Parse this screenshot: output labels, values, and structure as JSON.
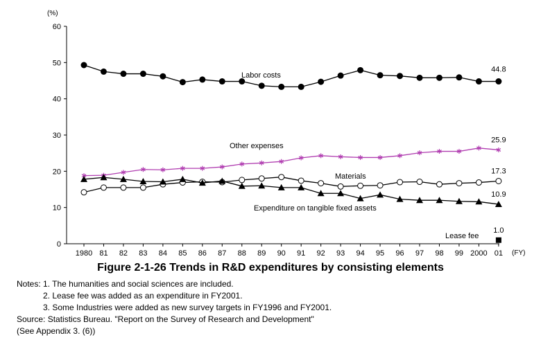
{
  "chart_data": {
    "type": "line",
    "title": "Figure 2-1-26  Trends in R&D expenditures by consisting elements",
    "ylabel": "(%)",
    "xlabel": "(FY)",
    "ylim": [
      0,
      60
    ],
    "yticks": [
      "0",
      "10",
      "20",
      "30",
      "40",
      "50",
      "60"
    ],
    "categories": [
      "1980",
      "81",
      "82",
      "83",
      "84",
      "85",
      "86",
      "87",
      "88",
      "89",
      "90",
      "91",
      "92",
      "93",
      "94",
      "95",
      "96",
      "97",
      "98",
      "99",
      "2000",
      "01"
    ],
    "grid": false,
    "legend": "inline labels",
    "series": [
      {
        "name": "Labor costs",
        "marker": "filled-circle",
        "color": "#000000",
        "values": [
          49.3,
          47.5,
          46.9,
          46.9,
          46.2,
          44.6,
          45.3,
          44.8,
          44.8,
          43.6,
          43.3,
          43.3,
          44.7,
          46.4,
          47.9,
          46.5,
          46.3,
          45.8,
          45.8,
          45.9,
          44.8,
          44.8
        ],
        "end_label": "44.8"
      },
      {
        "name": "Other expenses",
        "marker": "star",
        "color": "#b03cb0",
        "values": [
          18.8,
          18.9,
          19.7,
          20.5,
          20.4,
          20.8,
          20.8,
          21.2,
          22.0,
          22.3,
          22.7,
          23.7,
          24.3,
          24.0,
          23.8,
          23.8,
          24.3,
          25.1,
          25.5,
          25.5,
          26.4,
          25.9
        ],
        "end_label": "25.9"
      },
      {
        "name": "Materials",
        "marker": "open-circle",
        "color": "#000000",
        "values": [
          14.2,
          15.5,
          15.5,
          15.5,
          16.4,
          16.9,
          17.1,
          17.0,
          17.6,
          18.0,
          18.4,
          17.4,
          16.7,
          15.8,
          16.0,
          16.1,
          17.0,
          17.1,
          16.4,
          16.7,
          16.9,
          17.3
        ],
        "end_label": "17.3"
      },
      {
        "name": "Expenditure on tangible fixed assets",
        "marker": "filled-triangle",
        "color": "#000000",
        "values": [
          17.8,
          18.3,
          17.8,
          17.2,
          17.1,
          17.8,
          16.8,
          17.3,
          15.9,
          16.0,
          15.5,
          15.5,
          13.9,
          13.9,
          12.5,
          13.5,
          12.3,
          12.0,
          12.0,
          11.7,
          11.6,
          10.9
        ],
        "end_label": "10.9"
      },
      {
        "name": "Lease fee",
        "marker": "filled-square",
        "color": "#000000",
        "values": [
          null,
          null,
          null,
          null,
          null,
          null,
          null,
          null,
          null,
          null,
          null,
          null,
          null,
          null,
          null,
          null,
          null,
          null,
          null,
          null,
          null,
          1.0
        ],
        "end_label": "1.0"
      }
    ]
  },
  "notes": {
    "line1": "Notes: 1. The humanities and social sciences are included.",
    "line2": "2. Lease fee was added as an expenditure in FY2001.",
    "line3": "3. Some Industries were added as new survey targets in FY1996 and FY2001.",
    "source": "Source: Statistics Bureau. \"Report on the Survey of Research and Development\"",
    "appendix": "(See Appendix 3. (6))"
  }
}
